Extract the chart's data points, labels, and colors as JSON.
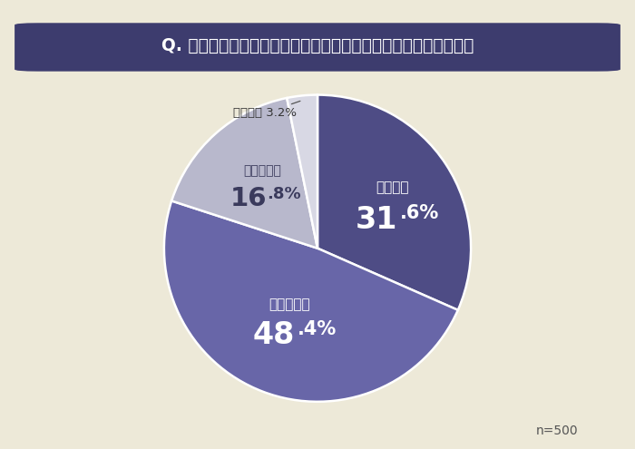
{
  "title": "Q. 仕事のプレッシャーが体調やメンタルに影響することはある？",
  "bg_color": "#ede9d8",
  "title_bg_color": "#3d3c6e",
  "title_text_color": "#ffffff",
  "slices": [
    31.6,
    48.4,
    16.8,
    3.2
  ],
  "labels": [
    "よくある",
    "たまにある",
    "あまりない",
    "全くない"
  ],
  "colors": [
    "#4e4c85",
    "#6866a8",
    "#b8b8cc",
    "#d8d8e4"
  ],
  "startangle": 90,
  "n_label": "n=500",
  "annotation_label": "全くない 3.2%",
  "fig_width": 7.0,
  "fig_height": 4.95,
  "dpi": 100
}
